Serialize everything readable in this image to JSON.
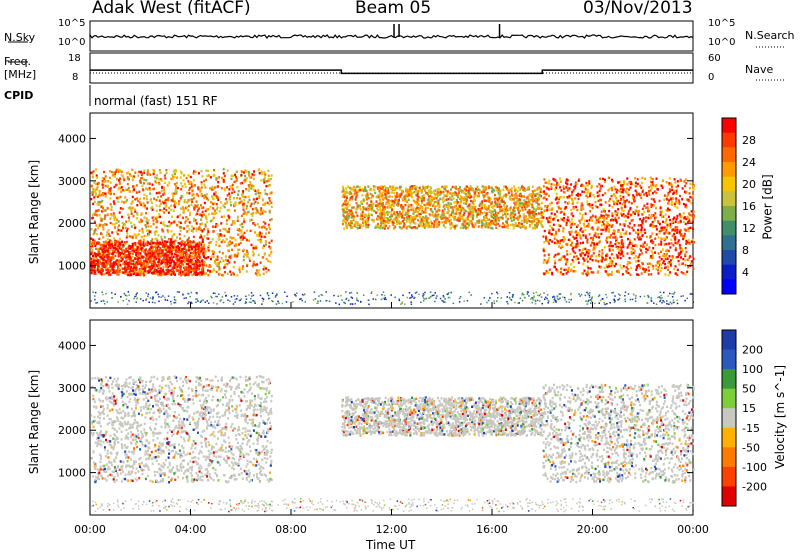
{
  "header": {
    "station": "Adak West (fitACF)",
    "beam": "Beam 05",
    "date": "03/Nov/2013"
  },
  "noise_panel": {
    "left_label": "N.Sky",
    "right_label": "N.Search",
    "y_ticks_left": [
      "10^5",
      "10^0"
    ],
    "y_ticks_right": [
      "10^5",
      "10^0"
    ]
  },
  "freq_panel": {
    "left_label_top": "Freq.",
    "left_label_unit": "[MHz]",
    "right_label": "Nave",
    "y_ticks_left": [
      "18",
      "8"
    ],
    "y_ticks_right": [
      "60",
      "0"
    ],
    "freq_segments_hours": [
      [
        0,
        10,
        12
      ],
      [
        10,
        18,
        10.5
      ],
      [
        18,
        24,
        12
      ]
    ]
  },
  "cpid_panel": {
    "label": "CPID",
    "text": "normal (fast) 151 RF"
  },
  "axes": {
    "xlabel": "Time UT",
    "x_ticks": [
      "00:00",
      "04:00",
      "08:00",
      "12:00",
      "16:00",
      "20:00",
      "00:00"
    ],
    "ylabel": "Slant Range [km]",
    "y_ticks": [
      "1000",
      "2000",
      "3000",
      "4000"
    ]
  },
  "power_colorbar": {
    "label": "Power [dB]",
    "ticks": [
      "28",
      "24",
      "20",
      "16",
      "12",
      "8",
      "4"
    ],
    "colors": [
      "#ff0000",
      "#ff3a00",
      "#ff6a00",
      "#ff9a00",
      "#f6c400",
      "#c9c23a",
      "#7cae4a",
      "#3f8f6a",
      "#2f6f8f",
      "#1f4aa8",
      "#0a1ec8",
      "#0000ff"
    ]
  },
  "velocity_colorbar": {
    "label": "Velocity [m s^-1]",
    "ticks": [
      "200",
      "100",
      "50",
      "15",
      "-15",
      "-50",
      "-100",
      "-200"
    ],
    "colors": [
      "#1e3ca8",
      "#2a5abf",
      "#3a9a3a",
      "#7ccf3a",
      "#c8c8c0",
      "#ffb000",
      "#ff7a00",
      "#ff4000",
      "#e00000"
    ]
  },
  "chart_data": {
    "type": "heatmap",
    "title": "Adak West (fitACF)",
    "xlabel": "Time UT",
    "ylabel": "Slant Range [km]",
    "xlim_hours": [
      0,
      24
    ],
    "ylim_km": [
      0,
      4600
    ],
    "power_panel": {
      "colorbar_label": "Power [dB]",
      "colorbar_range_db": [
        0,
        30
      ],
      "regions": [
        {
          "hours": [
            0,
            7.2
          ],
          "range_km": [
            800,
            3300
          ],
          "typical_db": 20
        },
        {
          "hours": [
            0,
            4.5
          ],
          "range_km": [
            800,
            1600
          ],
          "typical_db": 28
        },
        {
          "hours": [
            10,
            18
          ],
          "range_km": [
            1900,
            2900
          ],
          "typical_db": 18
        },
        {
          "hours": [
            18,
            24
          ],
          "range_km": [
            800,
            3100
          ],
          "typical_db": 24
        }
      ]
    },
    "velocity_panel": {
      "colorbar_label": "Velocity [m s^-1]",
      "colorbar_range_ms": [
        -200,
        200
      ],
      "regions": [
        {
          "hours": [
            0,
            7.2
          ],
          "range_km": [
            800,
            3300
          ],
          "typical_ms": 0
        },
        {
          "hours": [
            10,
            18
          ],
          "range_km": [
            1900,
            2800
          ],
          "typical_ms": 0
        },
        {
          "hours": [
            18,
            24
          ],
          "range_km": [
            800,
            3100
          ],
          "typical_ms": 0
        }
      ]
    }
  }
}
